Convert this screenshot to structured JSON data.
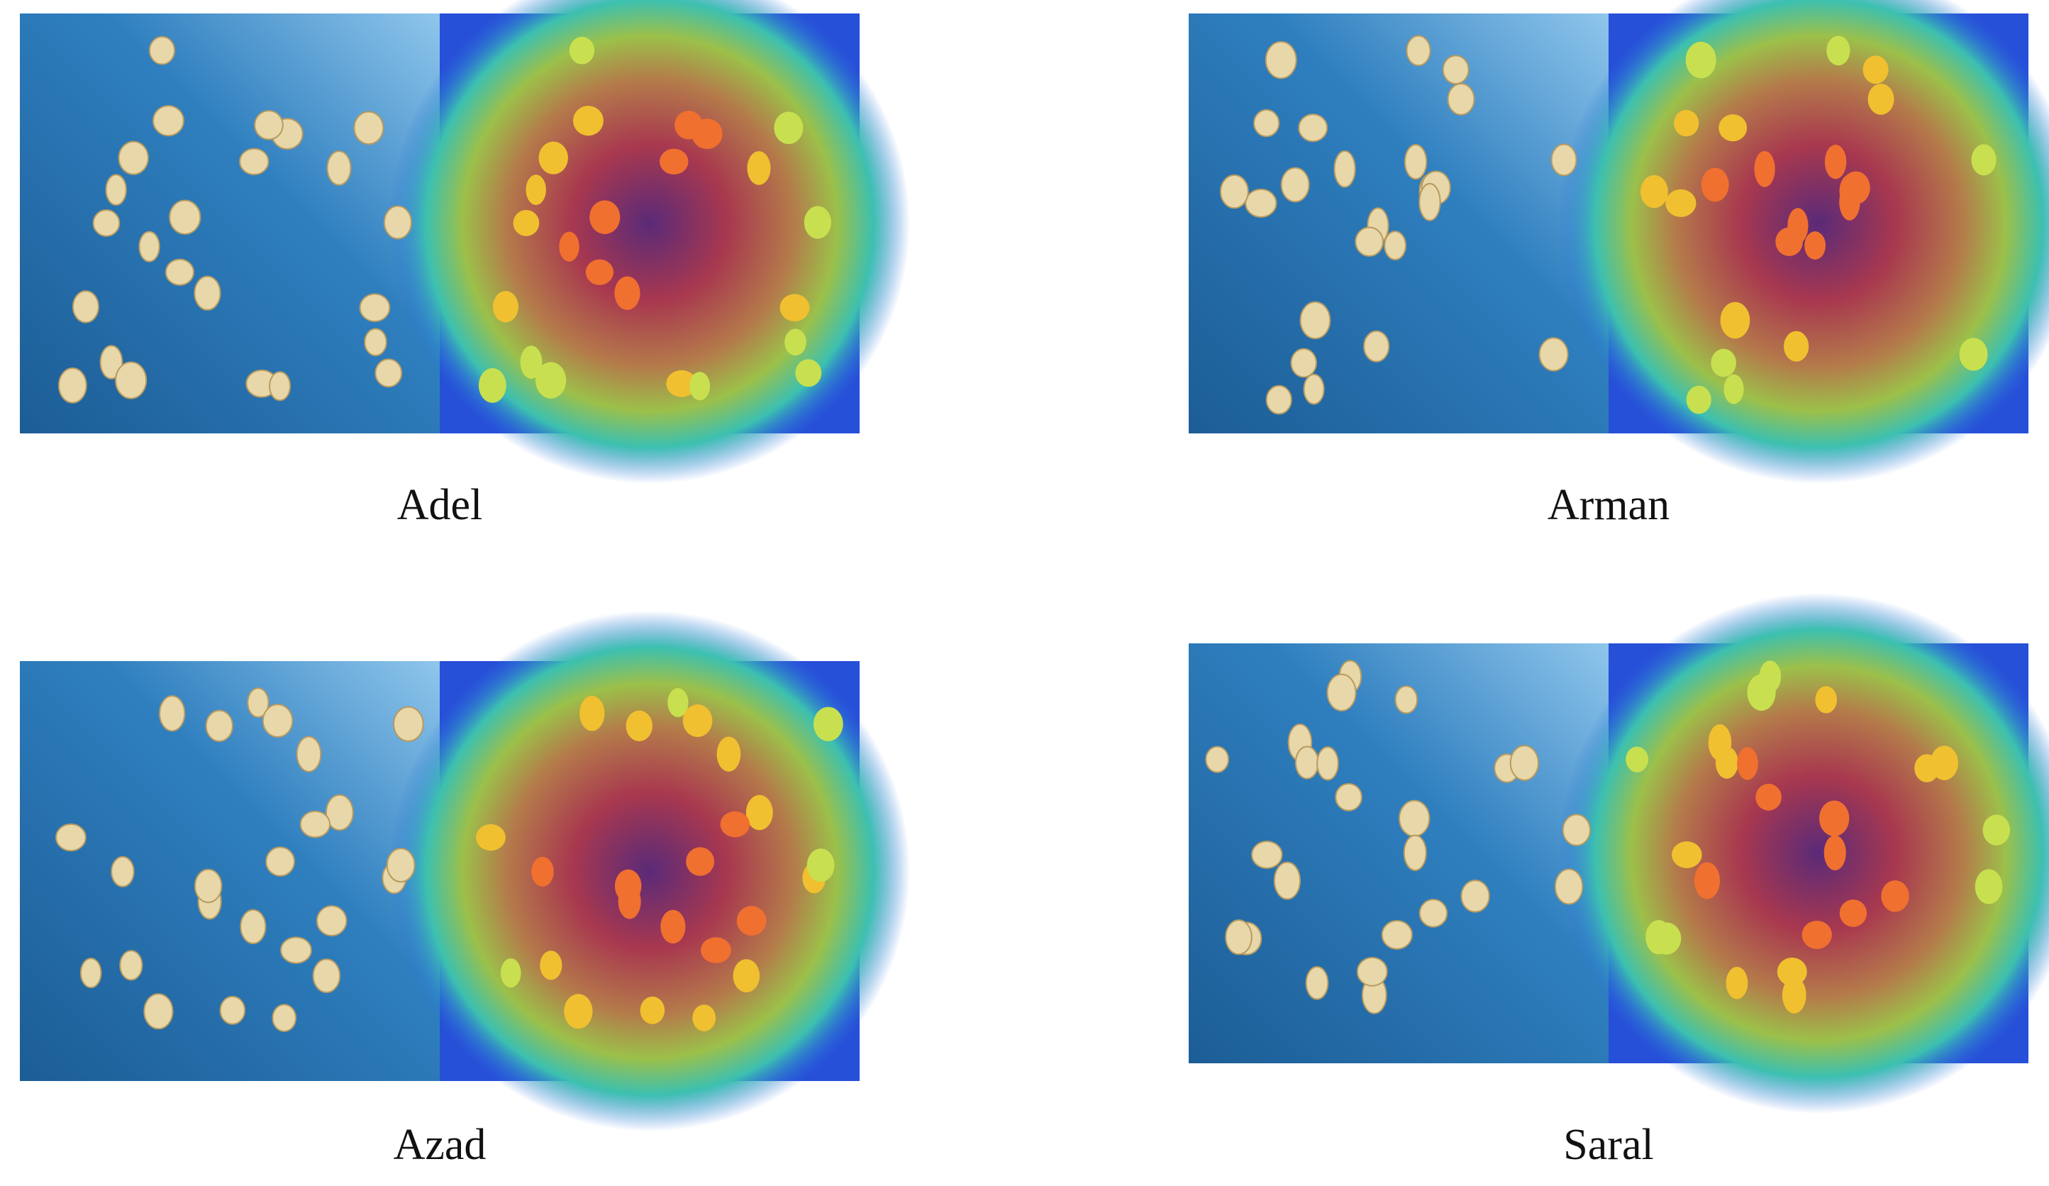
{
  "panels": [
    {
      "label": "Adel"
    },
    {
      "label": "Arman"
    },
    {
      "label": "Azad"
    },
    {
      "label": "Saral"
    }
  ]
}
